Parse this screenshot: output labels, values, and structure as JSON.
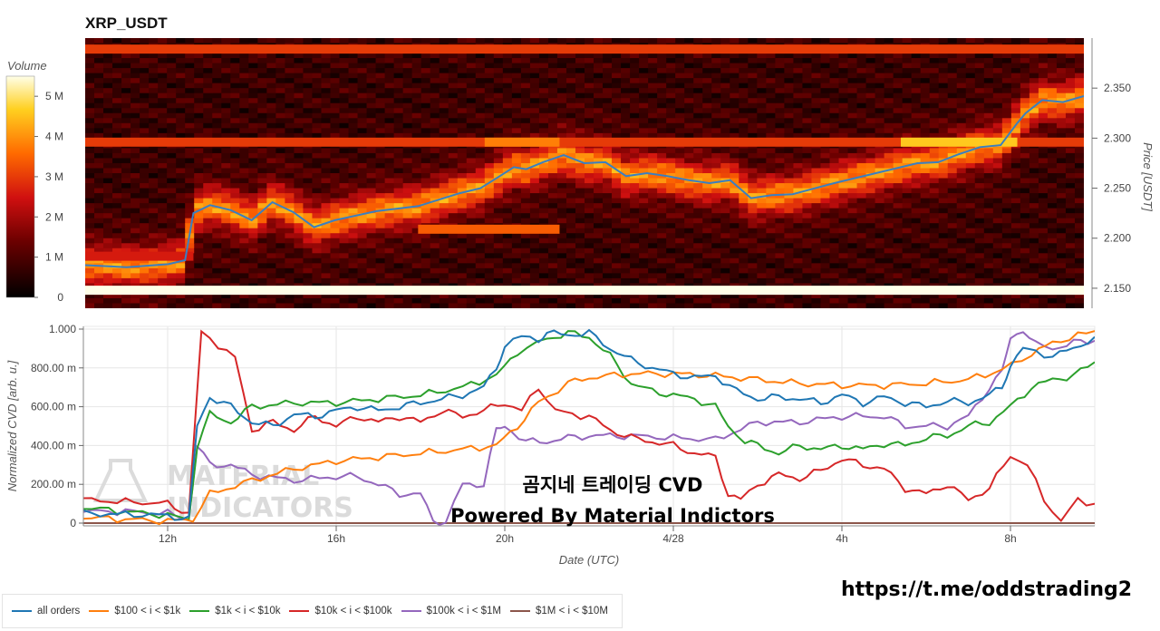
{
  "header": {
    "title": "XRP_USDT"
  },
  "overlay": {
    "line1": "곰지네 트레이딩 CVD",
    "line2": "Powered By Material Indictors",
    "watermark_line1": "MATERIAL",
    "watermark_line2": "INDICATORS",
    "link": "https://t.me/oddstrading2"
  },
  "colors": {
    "all_orders": "#1f77b4",
    "b100_1k": "#ff7f0e",
    "b1k_10k": "#2ca02c",
    "b10k_100k": "#d62728",
    "b100k_1m": "#9467bd",
    "b1m_10m": "#8c564b"
  },
  "chart_data": [
    {
      "type": "heatmap",
      "title": "XRP_USDT",
      "colorbar": {
        "label": "Volume",
        "ticks": [
          "0",
          "1 M",
          "2 M",
          "3 M",
          "4 M",
          "5 M"
        ],
        "range": [
          0,
          5.5
        ]
      },
      "y_axis": {
        "label": "Price [USDT]",
        "ticks": [
          "2.150",
          "2.200",
          "2.250",
          "2.300",
          "2.350"
        ],
        "range": [
          2.13,
          2.4
        ]
      },
      "x_range_hours": [
        10,
        34
      ],
      "price_line": {
        "name": "price",
        "x_hours": [
          10,
          11,
          12,
          12.4,
          12.6,
          13,
          13.5,
          14,
          14.5,
          15,
          15.5,
          16,
          17,
          18,
          19,
          19.5,
          20,
          20.3,
          20.6,
          21,
          21.5,
          22,
          22.5,
          23,
          23.5,
          24,
          24.5,
          25,
          25.5,
          26,
          26.5,
          27,
          28,
          29,
          30,
          30.5,
          31,
          31.5,
          32,
          32.4,
          32.6,
          33,
          33.5,
          34
        ],
        "values": [
          2.173,
          2.171,
          2.174,
          2.178,
          2.225,
          2.233,
          2.228,
          2.218,
          2.236,
          2.226,
          2.211,
          2.218,
          2.227,
          2.232,
          2.245,
          2.25,
          2.263,
          2.271,
          2.269,
          2.276,
          2.283,
          2.275,
          2.276,
          2.262,
          2.265,
          2.262,
          2.258,
          2.255,
          2.258,
          2.24,
          2.243,
          2.244,
          2.255,
          2.265,
          2.275,
          2.276,
          2.284,
          2.291,
          2.293,
          2.315,
          2.325,
          2.338,
          2.336,
          2.342
        ]
      },
      "bands": [
        {
          "price": 2.148,
          "level": 5.5,
          "x_hours": [
            10,
            34
          ]
        },
        {
          "price": 2.296,
          "level": 3.0,
          "x_hours": [
            10,
            34
          ]
        },
        {
          "price": 2.296,
          "level": 4.6,
          "x_hours": [
            29.6,
            32.4
          ]
        },
        {
          "price": 2.296,
          "level": 3.8,
          "x_hours": [
            19.6,
            21.4
          ]
        },
        {
          "price": 2.209,
          "level": 3.4,
          "x_hours": [
            18,
            21.4
          ]
        },
        {
          "price": 2.389,
          "level": 3.0,
          "x_hours": [
            10,
            34
          ]
        },
        {
          "price": 2.182,
          "level": 2.6,
          "x_hours": [
            10,
            12.6
          ]
        }
      ]
    },
    {
      "type": "line",
      "ylabel": "Normalized CVD [arb. u.]",
      "xlabel": "Date (UTC)",
      "y_ticks": [
        "0",
        "200.00 m",
        "400.00 m",
        "600.00 m",
        "800.00 m",
        "1.000"
      ],
      "ylim": [
        0,
        1.0
      ],
      "x_ticks": [
        {
          "label": "12h",
          "hour": 12
        },
        {
          "label": "16h",
          "hour": 16
        },
        {
          "label": "20h",
          "hour": 20
        },
        {
          "label": "4/28",
          "hour": 24
        },
        {
          "label": "4h",
          "hour": 28
        },
        {
          "label": "8h",
          "hour": 32
        }
      ],
      "xlim_hours": [
        10,
        34
      ],
      "series": [
        {
          "name": "all orders",
          "key": "all_orders",
          "x": [
            10,
            11,
            12,
            12.5,
            12.7,
            13,
            13.5,
            14,
            14.5,
            15,
            15.5,
            16,
            16.5,
            17,
            17.5,
            18,
            18.5,
            19,
            19.5,
            19.8,
            20,
            20.4,
            20.8,
            21,
            21.5,
            22,
            22.5,
            23,
            23.5,
            24,
            24.5,
            25,
            25.5,
            26,
            26.5,
            27,
            27.5,
            28,
            28.5,
            29,
            29.5,
            30,
            30.5,
            31,
            31.5,
            31.8,
            32,
            32.3,
            32.6,
            33,
            33.5,
            34
          ],
          "values": [
            0.05,
            0.045,
            0.04,
            0.02,
            0.5,
            0.65,
            0.6,
            0.52,
            0.5,
            0.56,
            0.55,
            0.58,
            0.6,
            0.58,
            0.6,
            0.62,
            0.64,
            0.66,
            0.7,
            0.8,
            0.92,
            0.96,
            0.95,
            0.98,
            0.97,
            0.98,
            0.9,
            0.84,
            0.8,
            0.77,
            0.75,
            0.76,
            0.68,
            0.64,
            0.65,
            0.64,
            0.62,
            0.66,
            0.62,
            0.65,
            0.62,
            0.6,
            0.63,
            0.62,
            0.66,
            0.7,
            0.82,
            0.9,
            0.88,
            0.86,
            0.9,
            0.96
          ]
        },
        {
          "name": "$100 < i < $1k",
          "key": "b100_1k",
          "x": [
            10,
            11,
            12,
            12.6,
            13,
            14,
            15,
            16,
            17,
            18,
            19,
            19.8,
            20.3,
            20.8,
            21.5,
            22,
            23,
            24,
            25,
            26,
            27,
            28,
            29,
            30,
            31,
            31.8,
            32.5,
            33,
            34
          ],
          "values": [
            0.03,
            0.02,
            0.01,
            0.02,
            0.15,
            0.22,
            0.28,
            0.32,
            0.34,
            0.36,
            0.38,
            0.4,
            0.5,
            0.62,
            0.72,
            0.75,
            0.77,
            0.77,
            0.76,
            0.74,
            0.72,
            0.71,
            0.71,
            0.72,
            0.74,
            0.79,
            0.87,
            0.93,
            0.99
          ]
        },
        {
          "name": "$1k < i < $10k",
          "key": "b1k_10k",
          "x": [
            10,
            11,
            12,
            12.5,
            12.7,
            13,
            13.5,
            14,
            15,
            16,
            17,
            18,
            19,
            19.8,
            20.3,
            21,
            21.5,
            22,
            22.5,
            23,
            23.5,
            24,
            24.5,
            25,
            25.3,
            25.7,
            26,
            26.5,
            27,
            27.5,
            28,
            28.5,
            29,
            29.5,
            30,
            30.5,
            31,
            31.5,
            32,
            32.5,
            33,
            33.5,
            34
          ],
          "values": [
            0.08,
            0.06,
            0.04,
            0.02,
            0.4,
            0.56,
            0.52,
            0.6,
            0.62,
            0.62,
            0.64,
            0.66,
            0.7,
            0.76,
            0.88,
            0.95,
            0.98,
            0.96,
            0.86,
            0.72,
            0.68,
            0.66,
            0.64,
            0.6,
            0.5,
            0.42,
            0.4,
            0.36,
            0.4,
            0.38,
            0.4,
            0.38,
            0.41,
            0.4,
            0.44,
            0.45,
            0.5,
            0.52,
            0.6,
            0.7,
            0.74,
            0.76,
            0.83
          ]
        },
        {
          "name": "$10k < i < $100k",
          "key": "b10k_100k",
          "x": [
            10,
            11,
            12,
            12.5,
            12.8,
            13.2,
            13.6,
            14,
            14.5,
            15,
            15.5,
            16,
            16.5,
            17,
            17.5,
            18,
            18.5,
            19,
            19.5,
            20,
            20.4,
            20.8,
            21.2,
            21.6,
            22,
            22.5,
            23,
            23.5,
            24,
            24.5,
            25,
            25.3,
            25.6,
            26,
            26.5,
            27,
            27.5,
            28,
            28.5,
            29,
            29.5,
            30,
            30.5,
            31,
            31.5,
            32,
            32.4,
            32.8,
            33.2,
            33.6,
            34
          ],
          "values": [
            0.12,
            0.11,
            0.1,
            0.05,
            0.98,
            0.92,
            0.85,
            0.48,
            0.52,
            0.48,
            0.55,
            0.5,
            0.55,
            0.52,
            0.55,
            0.52,
            0.58,
            0.55,
            0.58,
            0.62,
            0.58,
            0.7,
            0.58,
            0.56,
            0.55,
            0.48,
            0.44,
            0.42,
            0.4,
            0.36,
            0.34,
            0.15,
            0.12,
            0.2,
            0.25,
            0.23,
            0.27,
            0.33,
            0.3,
            0.28,
            0.18,
            0.15,
            0.2,
            0.12,
            0.18,
            0.35,
            0.3,
            0.12,
            0.01,
            0.12,
            0.1
          ]
        },
        {
          "name": "$100k < i < $1M",
          "key": "b100k_1m",
          "x": [
            10,
            11,
            12,
            12.5,
            12.7,
            13,
            13.5,
            14,
            15,
            16,
            16.5,
            17,
            17.5,
            18,
            18.3,
            18.6,
            19,
            19.5,
            19.8,
            20,
            20.5,
            21,
            21.5,
            22,
            22.5,
            23,
            24,
            25,
            26,
            27,
            28,
            28.5,
            29,
            29.5,
            30,
            30.5,
            31,
            31.5,
            31.8,
            32,
            32.3,
            32.6,
            33,
            33.5,
            34
          ],
          "values": [
            0.06,
            0.06,
            0.05,
            0.02,
            0.4,
            0.3,
            0.3,
            0.25,
            0.22,
            0.24,
            0.24,
            0.2,
            0.15,
            0.15,
            0.01,
            0.01,
            0.2,
            0.2,
            0.48,
            0.5,
            0.42,
            0.42,
            0.44,
            0.45,
            0.45,
            0.45,
            0.44,
            0.43,
            0.52,
            0.52,
            0.55,
            0.55,
            0.55,
            0.5,
            0.5,
            0.5,
            0.55,
            0.7,
            0.78,
            0.95,
            1.0,
            0.92,
            0.9,
            0.93,
            0.94
          ]
        },
        {
          "name": "$1M < i < $10M",
          "key": "b1m_10m",
          "x": [
            10,
            34
          ],
          "values": [
            0,
            0
          ]
        }
      ]
    }
  ]
}
